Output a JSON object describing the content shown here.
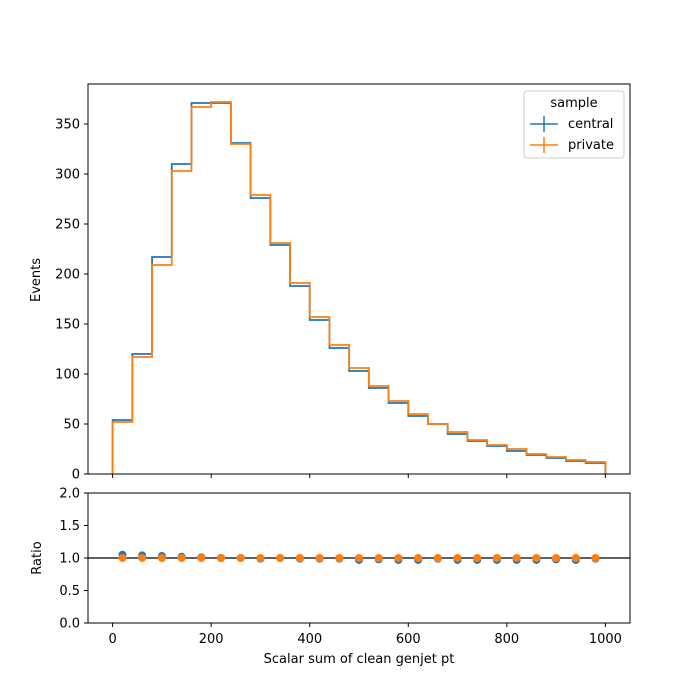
{
  "chart_data": [
    {
      "type": "histogram-step",
      "panel": "main",
      "xlabel": "",
      "ylabel": "Events",
      "xlim": [
        -50,
        1050
      ],
      "ylim": [
        0,
        390
      ],
      "yticks": [
        0,
        50,
        100,
        150,
        200,
        250,
        300,
        350
      ],
      "bin_edges": [
        0,
        40,
        80,
        120,
        160,
        200,
        240,
        280,
        320,
        360,
        400,
        440,
        480,
        520,
        560,
        600,
        640,
        680,
        720,
        760,
        800,
        840,
        880,
        920,
        960,
        1000
      ],
      "legend": {
        "title": "sample",
        "placement": "upper right"
      },
      "series": [
        {
          "name": "central",
          "color": "#1f77b4",
          "values": [
            54,
            120,
            217,
            310,
            371,
            371,
            331,
            276,
            229,
            188,
            154,
            126,
            103,
            86,
            71,
            58,
            50,
            40,
            33,
            28,
            23,
            19,
            16,
            13,
            11
          ]
        },
        {
          "name": "private",
          "color": "#ff7f0e",
          "values": [
            52,
            117,
            209,
            303,
            367,
            372,
            330,
            279,
            231,
            191,
            157,
            129,
            106,
            88,
            73,
            60,
            50,
            42,
            34,
            29,
            25,
            20,
            17,
            14,
            12
          ]
        }
      ]
    },
    {
      "type": "scatter",
      "panel": "ratio",
      "xlabel": "Scalar sum of clean genjet pt",
      "ylabel": "Ratio",
      "xlim": [
        -50,
        1050
      ],
      "ylim": [
        0,
        2
      ],
      "xticks": [
        0,
        200,
        400,
        600,
        800,
        1000
      ],
      "yticks": [
        0.0,
        0.5,
        1.0,
        1.5,
        2.0
      ],
      "reference_line": 1.0,
      "x": [
        20,
        60,
        100,
        140,
        180,
        220,
        260,
        300,
        340,
        380,
        420,
        460,
        500,
        540,
        580,
        620,
        660,
        700,
        740,
        780,
        820,
        860,
        900,
        940,
        980
      ],
      "series": [
        {
          "name": "central",
          "color": "#1f77b4",
          "values": [
            1.05,
            1.04,
            1.03,
            1.02,
            1.01,
            1.0,
            1.0,
            0.99,
            1.0,
            0.99,
            0.99,
            0.99,
            0.97,
            0.98,
            0.97,
            0.97,
            0.99,
            0.97,
            0.97,
            0.97,
            0.97,
            0.97,
            0.98,
            0.97,
            0.99
          ]
        },
        {
          "name": "private",
          "color": "#ff7f0e",
          "values": [
            1.0,
            1.0,
            1.0,
            1.0,
            1.0,
            1.0,
            1.0,
            1.0,
            1.0,
            1.0,
            1.0,
            1.0,
            1.0,
            1.0,
            1.0,
            1.0,
            1.0,
            1.0,
            1.0,
            1.0,
            1.0,
            1.0,
            1.0,
            1.0,
            1.0
          ]
        }
      ]
    }
  ]
}
